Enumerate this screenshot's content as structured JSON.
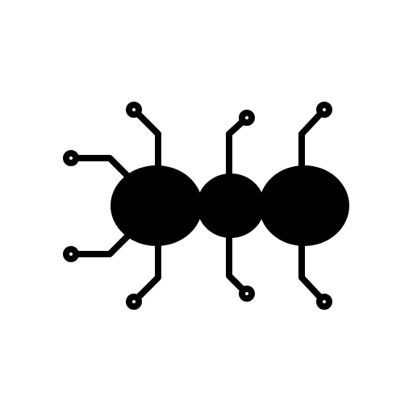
{
  "icon": {
    "semantic": "ant-icon",
    "colors": {
      "foreground": "#000000",
      "background": "#ffffff"
    }
  }
}
